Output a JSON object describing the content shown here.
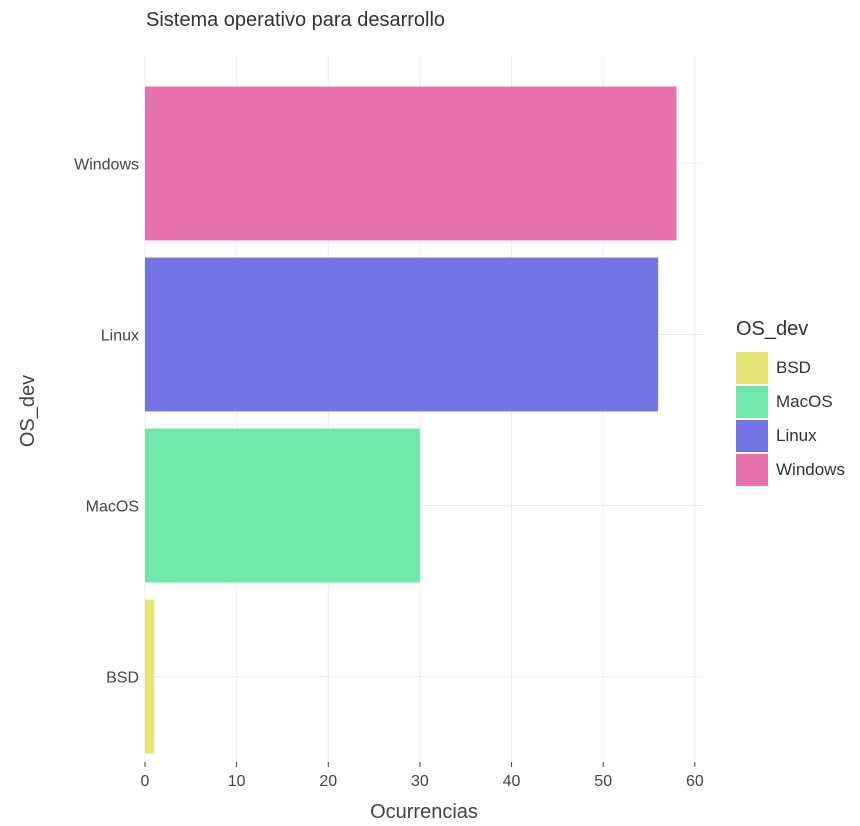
{
  "chart_data": {
    "type": "bar",
    "orientation": "horizontal",
    "title": "Sistema operativo para desarrollo",
    "xlabel": "Ocurrencias",
    "ylabel": "OS_dev",
    "categories": [
      "BSD",
      "MacOS",
      "Linux",
      "Windows"
    ],
    "values": [
      1,
      30,
      56,
      58
    ],
    "colors": [
      "#e6e474",
      "#73e6aa",
      "#7375e6",
      "#e673ad"
    ],
    "xlim": [
      0,
      61
    ],
    "xticks": [
      "0",
      "10",
      "20",
      "30",
      "40",
      "50",
      "60"
    ],
    "grid": true,
    "legend": {
      "title": "OS_dev",
      "position": "right",
      "entries": [
        "BSD",
        "MacOS",
        "Linux",
        "Windows"
      ]
    }
  }
}
